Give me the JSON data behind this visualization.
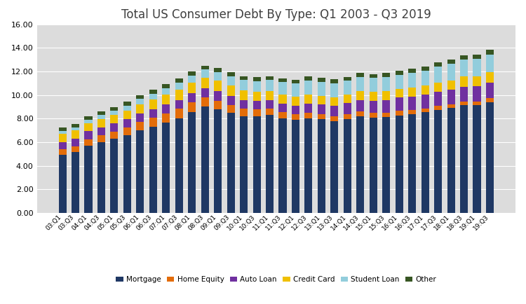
{
  "title": "Total US Consumer Debt By Type: Q1 2003 - Q3 2019",
  "labels": [
    "03:Q1",
    "03:Q3",
    "04:Q1",
    "04:Q3",
    "05:Q1",
    "05:Q3",
    "06:Q1",
    "06:Q3",
    "07:Q1",
    "07:Q3",
    "08:Q1",
    "08:Q3",
    "09:Q1",
    "09:Q3",
    "10:Q1",
    "10:Q3",
    "11:Q1",
    "11:Q3",
    "12:Q1",
    "12:Q3",
    "13:Q1",
    "13:Q3",
    "14:Q1",
    "14:Q3",
    "15:Q1",
    "15:Q3",
    "16:Q1",
    "16:Q3",
    "17:Q1",
    "17:Q3",
    "18:Q1",
    "18:Q3",
    "19:Q1",
    "19:Q3"
  ],
  "mortgage": [
    4.94,
    5.18,
    5.72,
    6.01,
    6.28,
    6.59,
    7.03,
    7.33,
    7.68,
    8.02,
    8.55,
    9.01,
    8.79,
    8.47,
    8.21,
    8.17,
    8.29,
    8.03,
    7.87,
    8.02,
    7.93,
    7.8,
    7.96,
    8.19,
    8.1,
    8.12,
    8.28,
    8.35,
    8.53,
    8.73,
    8.88,
    9.14,
    9.14,
    9.4
  ],
  "home_equity": [
    0.43,
    0.47,
    0.53,
    0.57,
    0.6,
    0.64,
    0.68,
    0.73,
    0.77,
    0.8,
    0.82,
    0.78,
    0.72,
    0.68,
    0.63,
    0.59,
    0.55,
    0.52,
    0.49,
    0.47,
    0.44,
    0.42,
    0.41,
    0.4,
    0.38,
    0.37,
    0.36,
    0.35,
    0.34,
    0.34,
    0.33,
    0.33,
    0.32,
    0.32
  ],
  "auto_loan": [
    0.64,
    0.65,
    0.67,
    0.68,
    0.7,
    0.72,
    0.73,
    0.74,
    0.74,
    0.75,
    0.76,
    0.78,
    0.8,
    0.78,
    0.75,
    0.72,
    0.7,
    0.72,
    0.74,
    0.79,
    0.83,
    0.88,
    0.93,
    1.0,
    1.05,
    1.1,
    1.13,
    1.16,
    1.16,
    1.19,
    1.22,
    1.25,
    1.27,
    1.33
  ],
  "credit_card": [
    0.69,
    0.69,
    0.69,
    0.71,
    0.73,
    0.74,
    0.77,
    0.81,
    0.84,
    0.88,
    0.9,
    0.9,
    0.89,
    0.87,
    0.83,
    0.81,
    0.77,
    0.77,
    0.75,
    0.78,
    0.73,
    0.71,
    0.72,
    0.73,
    0.72,
    0.74,
    0.73,
    0.77,
    0.77,
    0.81,
    0.82,
    0.85,
    0.83,
    0.88
  ],
  "student_loan": [
    0.24,
    0.27,
    0.31,
    0.35,
    0.38,
    0.42,
    0.46,
    0.51,
    0.55,
    0.6,
    0.64,
    0.68,
    0.73,
    0.79,
    0.85,
    0.9,
    0.97,
    1.04,
    1.11,
    1.18,
    1.18,
    1.19,
    1.19,
    1.21,
    1.19,
    1.19,
    1.2,
    1.23,
    1.28,
    1.35,
    1.38,
    1.45,
    1.49,
    1.51
  ],
  "other": [
    0.28,
    0.29,
    0.29,
    0.3,
    0.3,
    0.31,
    0.31,
    0.32,
    0.33,
    0.34,
    0.34,
    0.34,
    0.34,
    0.34,
    0.33,
    0.33,
    0.33,
    0.33,
    0.33,
    0.33,
    0.33,
    0.33,
    0.33,
    0.33,
    0.34,
    0.34,
    0.34,
    0.35,
    0.35,
    0.36,
    0.36,
    0.37,
    0.37,
    0.38
  ],
  "colors": {
    "mortgage": "#1F3864",
    "home_equity": "#E36C09",
    "auto_loan": "#7030A0",
    "credit_card": "#F0C000",
    "student_loan": "#92CDDC",
    "other": "#375623"
  },
  "legend_labels": [
    "Mortgage",
    "Home Equity",
    "Auto Loan",
    "Credit Card",
    "Student Loan",
    "Other"
  ],
  "ylim": [
    0,
    16
  ],
  "yticks": [
    0.0,
    2.0,
    4.0,
    6.0,
    8.0,
    10.0,
    12.0,
    14.0,
    16.0
  ],
  "plot_bg_color": "#DCDCDC",
  "fig_bg_color": "#FFFFFF",
  "title_fontsize": 12,
  "bar_width": 0.6
}
